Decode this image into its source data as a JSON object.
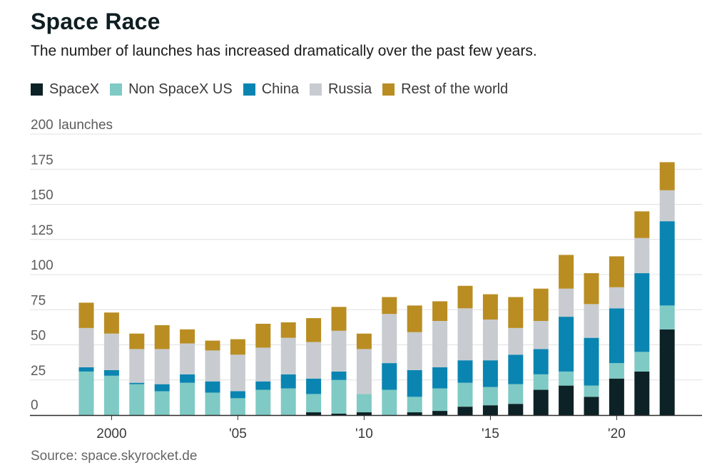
{
  "title": "Space Race",
  "subtitle": "The number of launches has increased dramatically over the past few years.",
  "source": "Source: space.skyrocket.de",
  "colors": {
    "SpaceX": "#0d2226",
    "Non SpaceX US": "#7fcac4",
    "China": "#0a85b1",
    "Russia": "#c8ccd1",
    "Rest of the world": "#b98d22"
  },
  "chart_data": {
    "type": "bar",
    "stacked": true,
    "title": "Space Race",
    "subtitle": "The number of launches has increased dramatically over the past few years.",
    "ylabel": "launches",
    "ylim": [
      0,
      200
    ],
    "yticks": [
      0,
      25,
      50,
      75,
      100,
      125,
      150,
      175,
      200
    ],
    "ytick_labels": [
      "0",
      "25",
      "50",
      "75",
      "100",
      "125",
      "150",
      "175",
      "200"
    ],
    "xticks": [
      {
        "year": 2000,
        "label": "2000"
      },
      {
        "year": 2005,
        "label": "'05"
      },
      {
        "year": 2010,
        "label": "'10"
      },
      {
        "year": 2015,
        "label": "'15"
      },
      {
        "year": 2020,
        "label": "'20"
      }
    ],
    "grid": true,
    "legend_position": "top-left",
    "categories": [
      1999,
      2000,
      2001,
      2002,
      2003,
      2004,
      2005,
      2006,
      2007,
      2008,
      2009,
      2010,
      2011,
      2012,
      2013,
      2014,
      2015,
      2016,
      2017,
      2018,
      2019,
      2020,
      2021,
      2022
    ],
    "series": [
      {
        "name": "SpaceX",
        "values": [
          0,
          0,
          0,
          0,
          0,
          0,
          0,
          0,
          0,
          2,
          1,
          2,
          0,
          2,
          3,
          6,
          7,
          8,
          18,
          21,
          13,
          26,
          31,
          61
        ]
      },
      {
        "name": "Non SpaceX US",
        "values": [
          31,
          28,
          22,
          17,
          23,
          16,
          12,
          18,
          19,
          13,
          24,
          13,
          18,
          11,
          16,
          17,
          13,
          14,
          11,
          10,
          8,
          11,
          14,
          17
        ]
      },
      {
        "name": "China",
        "values": [
          3,
          4,
          1,
          5,
          6,
          8,
          5,
          6,
          10,
          11,
          6,
          0,
          19,
          19,
          15,
          16,
          19,
          21,
          18,
          39,
          34,
          39,
          56,
          60
        ]
      },
      {
        "name": "Russia",
        "values": [
          28,
          26,
          24,
          25,
          22,
          22,
          26,
          24,
          26,
          26,
          29,
          32,
          35,
          27,
          33,
          37,
          29,
          19,
          20,
          20,
          24,
          15,
          25,
          22
        ]
      },
      {
        "name": "Rest of the world",
        "values": [
          18,
          15,
          11,
          17,
          10,
          7,
          11,
          17,
          11,
          17,
          17,
          11,
          12,
          19,
          14,
          16,
          18,
          22,
          23,
          24,
          22,
          22,
          19,
          20
        ]
      }
    ]
  }
}
